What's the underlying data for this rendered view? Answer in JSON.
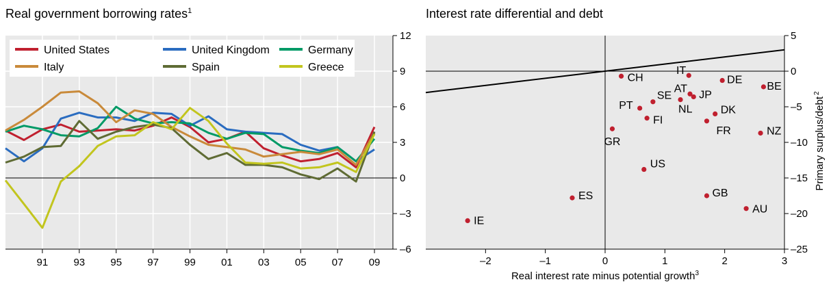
{
  "chart_data": [
    {
      "type": "line",
      "title": "Real government borrowing rates",
      "title_footnote": "1",
      "xlabel": "",
      "ylabel": "",
      "x": [
        1989,
        1990,
        1991,
        1992,
        1993,
        1994,
        1995,
        1996,
        1997,
        1998,
        1999,
        2000,
        2001,
        2002,
        2003,
        2004,
        2005,
        2006,
        2007,
        2008,
        2009,
        2010
      ],
      "xlim": [
        1989,
        2010
      ],
      "ylim": [
        -6,
        12
      ],
      "x_tick_values": [
        1991,
        1993,
        1995,
        1997,
        1999,
        2001,
        2003,
        2005,
        2007,
        2009
      ],
      "x_tick_labels": [
        "91",
        "93",
        "95",
        "97",
        "99",
        "01",
        "03",
        "05",
        "07",
        "09"
      ],
      "y_ticks": [
        -6,
        -3,
        0,
        3,
        6,
        9,
        12
      ],
      "y_tick_labels": [
        "–6",
        "–3",
        "0",
        "3",
        "6",
        "9",
        "12"
      ],
      "y_axis_side": "right",
      "grid": true,
      "legend_position": "top",
      "series": [
        {
          "name": "United States",
          "color": "#c0202f",
          "values": [
            4.0,
            3.2,
            4.1,
            4.5,
            3.9,
            4.0,
            4.1,
            4.0,
            4.4,
            5.1,
            4.3,
            3.0,
            3.3,
            3.9,
            2.5,
            1.9,
            1.4,
            1.6,
            2.1,
            0.9,
            4.3,
            null
          ]
        },
        {
          "name": "United Kingdom",
          "color": "#2a6cc0",
          "values": [
            2.5,
            1.4,
            2.5,
            5.0,
            5.5,
            5.1,
            5.1,
            4.8,
            5.5,
            5.4,
            4.4,
            5.2,
            4.1,
            3.9,
            3.8,
            3.7,
            2.8,
            2.3,
            2.6,
            1.4,
            2.4,
            null
          ]
        },
        {
          "name": "Germany",
          "color": "#009a66",
          "values": [
            3.9,
            4.4,
            4.1,
            3.6,
            3.5,
            4.2,
            6.0,
            5.0,
            4.6,
            4.7,
            4.6,
            3.8,
            3.3,
            3.8,
            3.7,
            2.6,
            2.3,
            2.1,
            2.6,
            1.4,
            3.3,
            null
          ]
        },
        {
          "name": "Italy",
          "color": "#c98a3a",
          "values": [
            4.0,
            4.9,
            6.0,
            7.2,
            7.3,
            6.3,
            4.7,
            5.7,
            5.4,
            4.3,
            3.5,
            2.8,
            2.6,
            2.4,
            1.8,
            2.0,
            2.2,
            2.0,
            2.4,
            1.1,
            3.8,
            null
          ]
        },
        {
          "name": "Spain",
          "color": "#5f6b34",
          "values": [
            1.3,
            1.8,
            2.6,
            2.7,
            4.8,
            3.3,
            3.9,
            4.3,
            4.5,
            4.2,
            2.8,
            1.6,
            2.1,
            1.1,
            1.1,
            0.9,
            0.3,
            -0.1,
            0.8,
            -0.3,
            3.9,
            null
          ]
        },
        {
          "name": "Greece",
          "color": "#c2c51e",
          "values": [
            -0.2,
            -2.2,
            -4.2,
            -0.3,
            1.0,
            2.7,
            3.5,
            3.6,
            4.7,
            4.1,
            5.9,
            4.8,
            2.9,
            1.3,
            1.2,
            1.3,
            0.8,
            0.9,
            1.3,
            0.5,
            3.7,
            null
          ]
        }
      ]
    },
    {
      "type": "scatter",
      "title": "Interest rate differential and debt",
      "xlabel": "Real interest rate minus potential growth",
      "xlabel_footnote": "3",
      "ylabel": "Primary surplus/debt",
      "ylabel_footnote": "2",
      "xlim": [
        -3.0,
        3.0
      ],
      "ylim": [
        -25,
        5
      ],
      "x_ticks": [
        -2,
        -1,
        0,
        1,
        2,
        3
      ],
      "x_tick_labels": [
        "–2",
        "–1",
        "0",
        "1",
        "2",
        "3"
      ],
      "y_ticks": [
        -25,
        -20,
        -15,
        -10,
        -5,
        0,
        5
      ],
      "y_tick_labels": [
        "–25",
        "–20",
        "–15",
        "–10",
        "–5",
        "0",
        "5"
      ],
      "y_axis_side": "right",
      "grid": false,
      "regression_line": {
        "x": [
          -3.0,
          3.0
        ],
        "y": [
          -3.0,
          3.0
        ]
      },
      "point_color": "#c0202f",
      "points": [
        {
          "label": "IE",
          "x": -2.3,
          "y": -21.0
        },
        {
          "label": "ES",
          "x": -0.55,
          "y": -17.8
        },
        {
          "label": "US",
          "x": 0.65,
          "y": -13.8
        },
        {
          "label": "GR",
          "x": 0.12,
          "y": -8.1
        },
        {
          "label": "CH",
          "x": 0.27,
          "y": -0.7
        },
        {
          "label": "PT",
          "x": 0.58,
          "y": -5.2
        },
        {
          "label": "FI",
          "x": 0.7,
          "y": -6.6
        },
        {
          "label": "SE",
          "x": 0.8,
          "y": -4.3
        },
        {
          "label": "IT",
          "x": 1.4,
          "y": -0.6
        },
        {
          "label": "AT",
          "x": 1.42,
          "y": -3.2
        },
        {
          "label": "JP",
          "x": 1.48,
          "y": -3.6
        },
        {
          "label": "NL",
          "x": 1.26,
          "y": -4.0
        },
        {
          "label": "DE",
          "x": 1.96,
          "y": -1.3
        },
        {
          "label": "DK",
          "x": 1.84,
          "y": -6.0
        },
        {
          "label": "FR",
          "x": 1.7,
          "y": -7.0
        },
        {
          "label": "BE",
          "x": 2.65,
          "y": -2.2
        },
        {
          "label": "NZ",
          "x": 2.6,
          "y": -8.7
        },
        {
          "label": "GB",
          "x": 1.7,
          "y": -17.5
        },
        {
          "label": "AU",
          "x": 2.36,
          "y": -19.3
        }
      ]
    }
  ]
}
